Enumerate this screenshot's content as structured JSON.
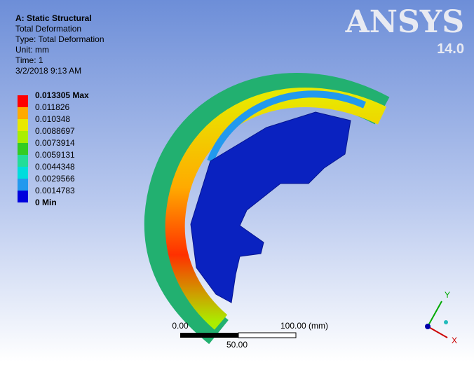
{
  "header": {
    "title": "A: Static Structural",
    "lines": [
      "Total Deformation",
      "Type: Total Deformation",
      "Unit: mm",
      "Time: 1",
      "3/2/2018 9:13 AM"
    ]
  },
  "logo": {
    "name": "ANSYS",
    "version": "14.0"
  },
  "legend": {
    "labels": [
      "0.013305 Max",
      "0.011826",
      "0.010348",
      "0.0088697",
      "0.0073914",
      "0.0059131",
      "0.0044348",
      "0.0029566",
      "0.0014783",
      "0 Min"
    ],
    "colors": [
      "#ff0000",
      "#ffaa00",
      "#e8e800",
      "#aaee00",
      "#33cc22",
      "#22dd99",
      "#00dddd",
      "#2299ee",
      "#0000dd"
    ]
  },
  "scale_bar": {
    "left": "0.00",
    "right": "100.00 (mm)",
    "middle": "50.00"
  },
  "triad": {
    "y": "Y",
    "x": "X"
  }
}
